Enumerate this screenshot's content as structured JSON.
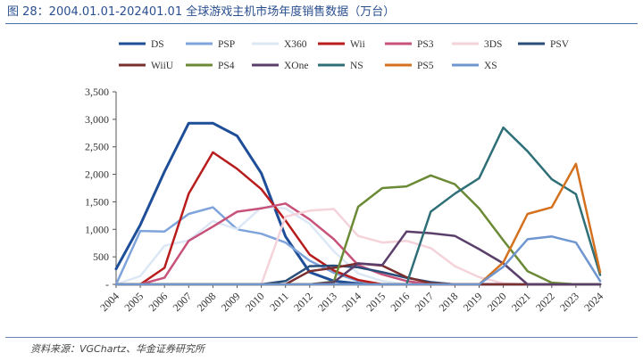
{
  "title": "图 28：2004.01.01-202401.01 全球游戏主机市场年度销售数据（万台）",
  "source": "资料来源：VGChartz、华金证券研究所",
  "chart_data": {
    "type": "line",
    "x": [
      "2004",
      "2005",
      "2006",
      "2007",
      "2008",
      "2009",
      "2010",
      "2011",
      "2012",
      "2013",
      "2014",
      "2015",
      "2016",
      "2017",
      "2018",
      "2019",
      "2020",
      "2021",
      "2022",
      "2023",
      "2024"
    ],
    "ylim": [
      0,
      3500
    ],
    "yticks": [
      0,
      500,
      1000,
      1500,
      2000,
      2500,
      3000,
      3500
    ],
    "ytick_labels": [
      "-",
      "500",
      "1,000",
      "1,500",
      "2,000",
      "2,500",
      "3,000",
      "3,500"
    ],
    "grid": false,
    "legend_position": "top",
    "series": [
      {
        "name": "DS",
        "color": "#1f4e99",
        "width": 3,
        "values": [
          280,
          1080,
          2050,
          2930,
          2930,
          2700,
          2020,
          870,
          220,
          60,
          15,
          0,
          0,
          0,
          0,
          0,
          0,
          0,
          0,
          0,
          0
        ]
      },
      {
        "name": "PSP",
        "color": "#7fa4dc",
        "width": 2.5,
        "values": [
          0,
          970,
          960,
          1280,
          1400,
          1000,
          920,
          760,
          430,
          210,
          60,
          0,
          0,
          0,
          0,
          0,
          0,
          0,
          0,
          0,
          0
        ]
      },
      {
        "name": "X360",
        "color": "#dce8f6",
        "width": 2.5,
        "values": [
          0,
          150,
          700,
          800,
          1150,
          1000,
          1400,
          1380,
          1100,
          600,
          200,
          60,
          0,
          0,
          0,
          0,
          0,
          0,
          0,
          0,
          0
        ]
      },
      {
        "name": "Wii",
        "color": "#b81c1c",
        "width": 2.5,
        "values": [
          0,
          0,
          300,
          1650,
          2400,
          2100,
          1730,
          1160,
          540,
          250,
          80,
          0,
          0,
          0,
          0,
          0,
          0,
          0,
          0,
          0,
          0
        ]
      },
      {
        "name": "PS3",
        "color": "#c8537a",
        "width": 2.5,
        "values": [
          0,
          0,
          120,
          790,
          1050,
          1320,
          1380,
          1470,
          1180,
          820,
          350,
          180,
          60,
          0,
          0,
          0,
          0,
          0,
          0,
          0,
          0
        ]
      },
      {
        "name": "3DS",
        "color": "#f5d3da",
        "width": 2.5,
        "values": [
          0,
          0,
          0,
          0,
          0,
          0,
          0,
          1230,
          1340,
          1370,
          880,
          760,
          790,
          660,
          330,
          130,
          20,
          0,
          0,
          0,
          0
        ]
      },
      {
        "name": "PSV",
        "color": "#2a4e7a",
        "width": 2.5,
        "values": [
          0,
          0,
          0,
          0,
          0,
          0,
          0,
          60,
          330,
          340,
          310,
          220,
          120,
          40,
          0,
          0,
          0,
          0,
          0,
          0,
          0
        ]
      },
      {
        "name": "WiiU",
        "color": "#7b2e2e",
        "width": 2.5,
        "values": [
          0,
          0,
          0,
          0,
          0,
          0,
          0,
          0,
          240,
          300,
          380,
          340,
          130,
          20,
          0,
          0,
          0,
          0,
          0,
          0,
          0
        ]
      },
      {
        "name": "PS4",
        "color": "#6b8a35",
        "width": 2.5,
        "values": [
          0,
          0,
          0,
          0,
          0,
          0,
          0,
          0,
          0,
          50,
          1410,
          1750,
          1780,
          1980,
          1820,
          1380,
          800,
          240,
          30,
          0,
          0
        ]
      },
      {
        "name": "XOne",
        "color": "#5a3f6b",
        "width": 2.5,
        "values": [
          0,
          0,
          0,
          0,
          0,
          0,
          0,
          0,
          0,
          40,
          380,
          350,
          960,
          930,
          880,
          640,
          380,
          0,
          0,
          0,
          0
        ]
      },
      {
        "name": "NS",
        "color": "#2f6f77",
        "width": 2.5,
        "values": [
          0,
          0,
          0,
          0,
          0,
          0,
          0,
          0,
          0,
          0,
          0,
          0,
          0,
          1320,
          1650,
          1930,
          2850,
          2420,
          1910,
          1640,
          170
        ]
      },
      {
        "name": "PS5",
        "color": "#d4711e",
        "width": 2.5,
        "values": [
          0,
          0,
          0,
          0,
          0,
          0,
          0,
          0,
          0,
          0,
          0,
          0,
          0,
          0,
          0,
          0,
          400,
          1280,
          1400,
          2190,
          220
        ]
      },
      {
        "name": "XS",
        "color": "#6f96cf",
        "width": 2.5,
        "values": [
          0,
          0,
          0,
          0,
          0,
          0,
          0,
          0,
          0,
          0,
          0,
          0,
          0,
          0,
          0,
          0,
          320,
          820,
          870,
          760,
          60
        ]
      }
    ]
  }
}
